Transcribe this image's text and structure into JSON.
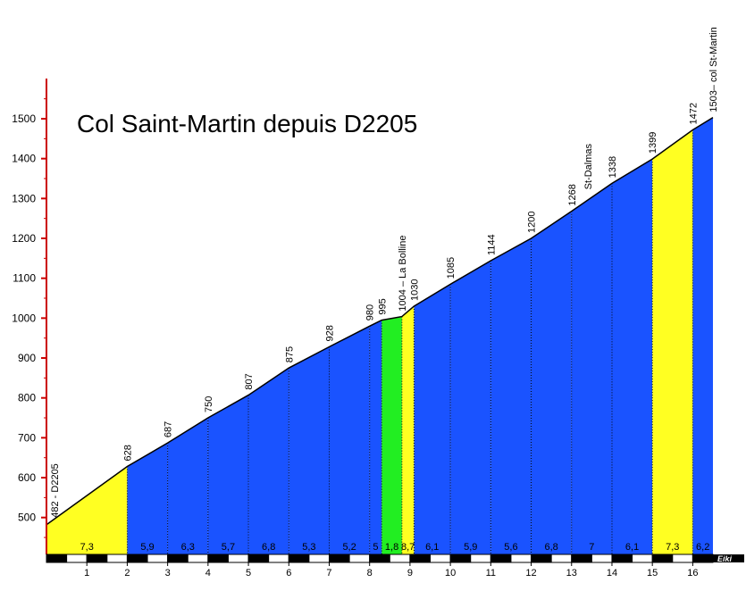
{
  "chart_data": {
    "type": "area",
    "title": "Col Saint-Martin depuis D2205",
    "signature": "Eiki",
    "xlim": [
      0,
      16.5
    ],
    "ylim": [
      420,
      1600
    ],
    "y_ticks": [
      500,
      600,
      700,
      800,
      900,
      1000,
      1100,
      1200,
      1300,
      1400,
      1500
    ],
    "x_ticks": [
      1,
      2,
      3,
      4,
      5,
      6,
      7,
      8,
      9,
      10,
      11,
      12,
      13,
      14,
      15,
      16
    ],
    "points": [
      {
        "km": 0,
        "alt": 482,
        "label": "482 - D2205"
      },
      {
        "km": 2,
        "alt": 628,
        "label": "628"
      },
      {
        "km": 3,
        "alt": 687,
        "label": "687"
      },
      {
        "km": 4,
        "alt": 750,
        "label": "750"
      },
      {
        "km": 5,
        "alt": 807,
        "label": "807"
      },
      {
        "km": 6,
        "alt": 875,
        "label": "875"
      },
      {
        "km": 7,
        "alt": 928,
        "label": "928"
      },
      {
        "km": 8,
        "alt": 980,
        "label": "980"
      },
      {
        "km": 8.3,
        "alt": 995,
        "label": "995"
      },
      {
        "km": 8.8,
        "alt": 1004,
        "label": "1004 – La Bolline"
      },
      {
        "km": 9.1,
        "alt": 1030,
        "label": "1030"
      },
      {
        "km": 10,
        "alt": 1085,
        "label": "1085"
      },
      {
        "km": 11,
        "alt": 1144,
        "label": "1144"
      },
      {
        "km": 12,
        "alt": 1200,
        "label": "1200"
      },
      {
        "km": 13,
        "alt": 1268,
        "label": "1268"
      },
      {
        "km": 14,
        "alt": 1338,
        "label": "1338"
      },
      {
        "km": 15,
        "alt": 1399,
        "label": "1399"
      },
      {
        "km": 16,
        "alt": 1472,
        "label": "1472"
      },
      {
        "km": 16.5,
        "alt": 1503,
        "label": "1503– col St-Martin"
      }
    ],
    "segments": [
      {
        "from": 0,
        "to": 2,
        "grade": "7,3",
        "color": "#ffff22"
      },
      {
        "from": 2,
        "to": 3,
        "grade": "5,9",
        "color": "#1a53ff"
      },
      {
        "from": 3,
        "to": 4,
        "grade": "6,3",
        "color": "#1a53ff"
      },
      {
        "from": 4,
        "to": 5,
        "grade": "5,7",
        "color": "#1a53ff"
      },
      {
        "from": 5,
        "to": 6,
        "grade": "6,8",
        "color": "#1a53ff"
      },
      {
        "from": 6,
        "to": 7,
        "grade": "5,3",
        "color": "#1a53ff"
      },
      {
        "from": 7,
        "to": 8,
        "grade": "5,2",
        "color": "#1a53ff"
      },
      {
        "from": 8,
        "to": 8.3,
        "grade": "5",
        "color": "#1a53ff"
      },
      {
        "from": 8.3,
        "to": 8.8,
        "grade": "1,8",
        "color": "#22ee22"
      },
      {
        "from": 8.8,
        "to": 9.1,
        "grade": "8,7",
        "color": "#ffff22"
      },
      {
        "from": 9.1,
        "to": 10,
        "grade": "6,1",
        "color": "#1a53ff"
      },
      {
        "from": 10,
        "to": 11,
        "grade": "5,9",
        "color": "#1a53ff"
      },
      {
        "from": 11,
        "to": 12,
        "grade": "5,6",
        "color": "#1a53ff"
      },
      {
        "from": 12,
        "to": 13,
        "grade": "6,8",
        "color": "#1a53ff"
      },
      {
        "from": 13,
        "to": 14,
        "grade": "7",
        "color": "#1a53ff"
      },
      {
        "from": 14,
        "to": 15,
        "grade": "6,1",
        "color": "#1a53ff"
      },
      {
        "from": 15,
        "to": 16,
        "grade": "7,3",
        "color": "#ffff22"
      },
      {
        "from": 16,
        "to": 16.5,
        "grade": "6,2",
        "color": "#1a53ff"
      }
    ],
    "waypoints": [
      {
        "km": 13.4,
        "alt": 1300,
        "label": "St-Dalmas"
      }
    ]
  }
}
